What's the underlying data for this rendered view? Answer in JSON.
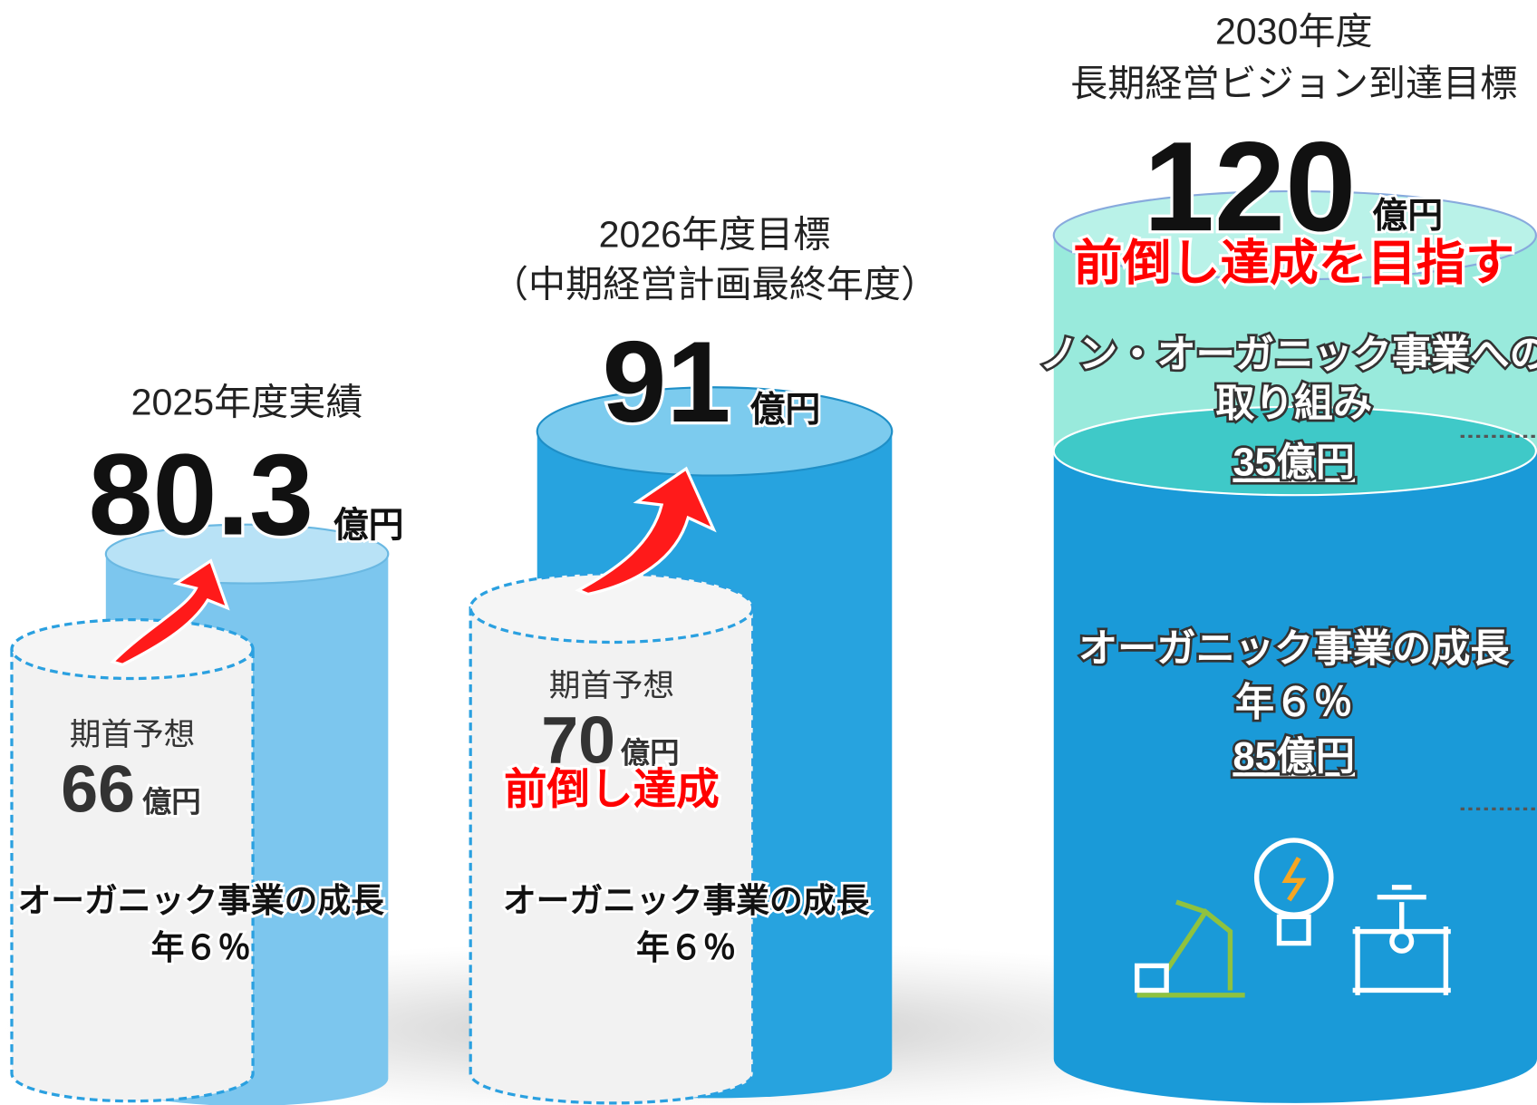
{
  "columns": [
    {
      "heading": [
        "2025年度実績"
      ],
      "value": 80.3,
      "unit": "億円",
      "forecast": {
        "label": "期首予想",
        "value": 66,
        "unit": "億円"
      },
      "growth": [
        "オーガニック事業の成長",
        "年６％"
      ]
    },
    {
      "heading": [
        "2026年度目標",
        "（中期経営計画最終年度）"
      ],
      "value": 91,
      "unit": "億円",
      "forecast": {
        "label": "期首予想",
        "value": 70,
        "unit": "億円"
      },
      "note": "前倒し達成",
      "growth": [
        "オーガニック事業の成長",
        "年６％"
      ]
    },
    {
      "heading": [
        "2030年度",
        "長期経営ビジョン到達目標"
      ],
      "value": 120,
      "unit": "億円",
      "note": "前倒し達成を目指す",
      "segments": [
        {
          "lines": [
            "ノン・オーガニック事業への",
            "取り組み"
          ],
          "amount": "35億円"
        },
        {
          "lines": [
            "オーガニック事業の成長",
            "年６％"
          ],
          "amount": "85億円"
        }
      ]
    }
  ]
}
